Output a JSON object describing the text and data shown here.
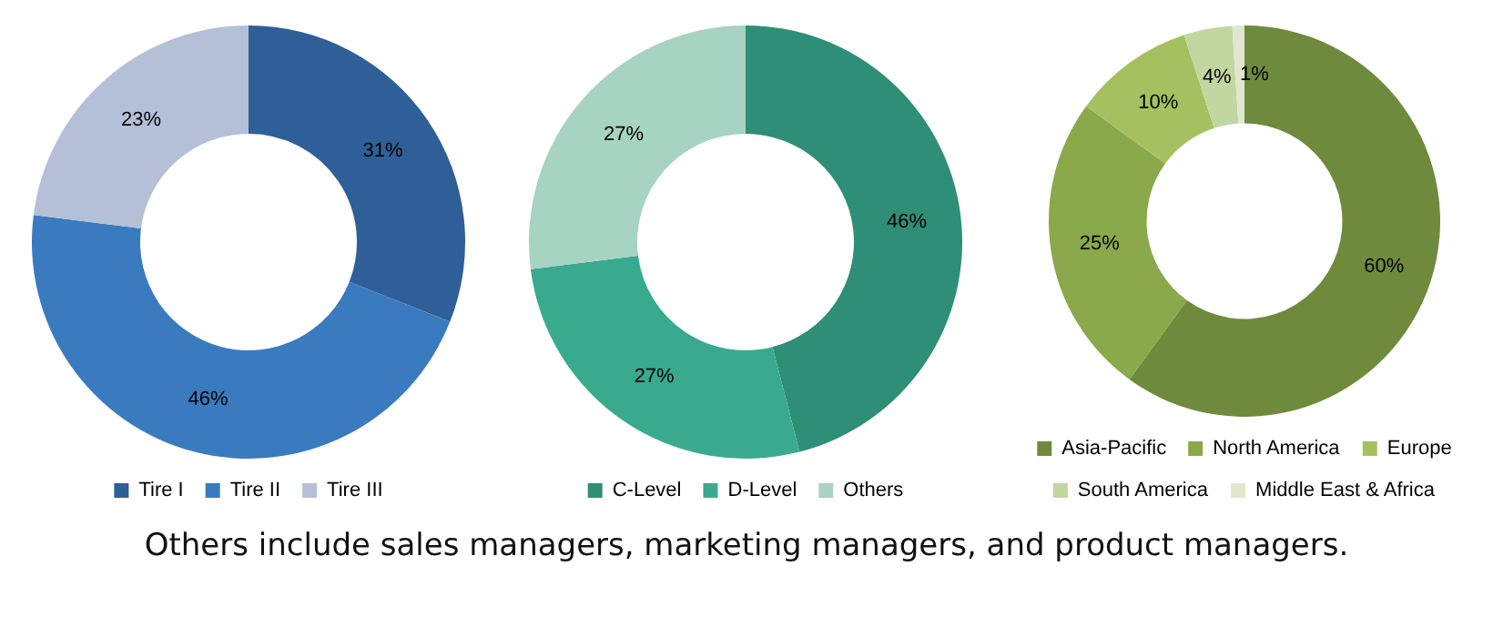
{
  "chart_data": [
    {
      "type": "donut",
      "categories": [
        "Tire I",
        "Tire II",
        "Tire III"
      ],
      "values": [
        31,
        46,
        23
      ],
      "colors": [
        "#2e5f98",
        "#3a7bbf",
        "#b4bfd8"
      ],
      "value_labels": [
        "31%",
        "46%",
        "23%"
      ],
      "legend": "bottom"
    },
    {
      "type": "donut",
      "categories": [
        "C-Level",
        "D-Level",
        "Others"
      ],
      "values": [
        46,
        27,
        27
      ],
      "colors": [
        "#2f8f76",
        "#3aaa8f",
        "#a7d3c3"
      ],
      "value_labels": [
        "46%",
        "27%",
        "27%"
      ],
      "legend": "bottom",
      "annotations": [
        "Others include sales managers, marketing managers, and product managers."
      ]
    },
    {
      "type": "donut",
      "categories": [
        "Asia-Pacific",
        "North America",
        "Europe",
        "South America",
        "Middle East & Africa"
      ],
      "values": [
        60,
        25,
        10,
        4,
        1
      ],
      "colors": [
        "#6e8b3d",
        "#89a94a",
        "#a5c15f",
        "#c2d6a0",
        "#dfe8cf"
      ],
      "value_labels": [
        "60%",
        "25%",
        "10%",
        "4%",
        "1%"
      ],
      "legend": "bottom"
    }
  ]
}
